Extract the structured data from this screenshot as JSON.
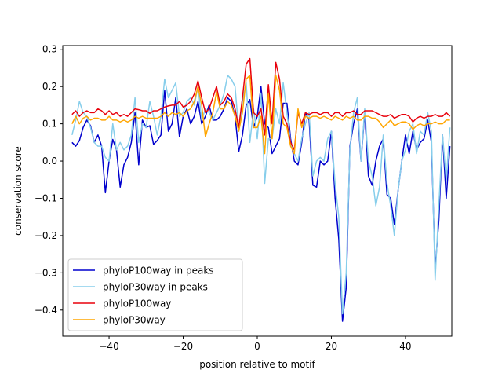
{
  "chart_data": {
    "type": "line",
    "title": "",
    "xlabel": "position relative to motif",
    "ylabel": "conservation score",
    "xlim": [
      -52.5,
      52.5
    ],
    "ylim": [
      -0.47,
      0.31
    ],
    "xticks": [
      -40,
      -20,
      0,
      20,
      40
    ],
    "yticks": [
      -0.4,
      -0.3,
      -0.2,
      -0.1,
      0.0,
      0.1,
      0.2,
      0.3
    ],
    "xtick_labels": [
      "−40",
      "−20",
      "0",
      "20",
      "40"
    ],
    "ytick_labels": [
      "−0.4",
      "−0.3",
      "−0.2",
      "−0.1",
      "0.0",
      "0.1",
      "0.2",
      "0.3"
    ],
    "grid": false,
    "legend_position": "lower-left",
    "x_start": -50,
    "series": [
      {
        "name": "phyloP100way in peaks",
        "color": "#0000cd",
        "values": [
          0.05,
          0.04,
          0.055,
          0.09,
          0.11,
          0.095,
          0.05,
          0.07,
          0.04,
          -0.085,
          0.0,
          0.058,
          0.03,
          -0.07,
          -0.01,
          0.01,
          0.05,
          0.13,
          -0.01,
          0.11,
          0.09,
          0.095,
          0.045,
          0.055,
          0.07,
          0.19,
          0.08,
          0.1,
          0.17,
          0.065,
          0.12,
          0.14,
          0.1,
          0.12,
          0.16,
          0.1,
          0.12,
          0.15,
          0.11,
          0.11,
          0.12,
          0.14,
          0.17,
          0.16,
          0.12,
          0.025,
          0.07,
          0.15,
          0.165,
          0.09,
          0.12,
          0.2,
          0.1,
          0.09,
          0.02,
          0.04,
          0.06,
          0.155,
          0.155,
          0.06,
          0.0,
          -0.01,
          0.05,
          0.13,
          0.11,
          -0.065,
          -0.07,
          0.0,
          -0.01,
          0.0,
          0.08,
          -0.1,
          -0.21,
          -0.43,
          -0.34,
          0.04,
          0.1,
          0.14,
          0.0,
          0.13,
          -0.04,
          -0.065,
          0.0,
          0.04,
          0.06,
          -0.09,
          -0.1,
          -0.17,
          -0.08,
          0.0,
          0.07,
          0.02,
          0.08,
          0.03,
          0.05,
          0.06,
          0.11,
          0.05,
          -0.29,
          -0.16,
          0.07,
          -0.1,
          0.04
        ]
      },
      {
        "name": "phyloP30way in peaks",
        "color": "#87ceeb",
        "values": [
          0.07,
          0.11,
          0.16,
          0.13,
          0.12,
          0.09,
          0.05,
          0.04,
          0.04,
          0.01,
          0.0,
          0.1,
          0.03,
          0.05,
          0.03,
          0.04,
          0.07,
          0.17,
          0.05,
          0.1,
          0.09,
          0.16,
          0.12,
          0.07,
          0.12,
          0.22,
          0.17,
          0.19,
          0.21,
          0.12,
          0.13,
          0.16,
          0.17,
          0.15,
          0.2,
          0.11,
          0.14,
          0.13,
          0.11,
          0.13,
          0.15,
          0.18,
          0.23,
          0.22,
          0.2,
          0.08,
          0.16,
          0.21,
          0.05,
          0.14,
          0.06,
          0.18,
          -0.06,
          0.06,
          0.06,
          0.14,
          0.1,
          0.21,
          0.13,
          0.05,
          0.02,
          0.0,
          0.06,
          0.1,
          0.13,
          -0.04,
          0.0,
          0.01,
          0.0,
          0.06,
          0.08,
          -0.06,
          -0.15,
          -0.41,
          -0.3,
          0.03,
          0.13,
          0.17,
          0.0,
          0.14,
          0.0,
          -0.04,
          -0.12,
          -0.07,
          0.07,
          -0.06,
          -0.12,
          -0.2,
          -0.08,
          0.0,
          0.03,
          0.08,
          0.1,
          0.02,
          0.08,
          0.07,
          0.13,
          0.08,
          -0.32,
          -0.12,
          0.07,
          -0.05,
          0.09
        ]
      },
      {
        "name": "phyloP100way",
        "color": "#e8000b",
        "values": [
          0.125,
          0.135,
          0.12,
          0.13,
          0.135,
          0.13,
          0.13,
          0.14,
          0.135,
          0.125,
          0.135,
          0.125,
          0.13,
          0.12,
          0.125,
          0.12,
          0.13,
          0.14,
          0.138,
          0.135,
          0.135,
          0.128,
          0.135,
          0.135,
          0.14,
          0.145,
          0.148,
          0.15,
          0.15,
          0.16,
          0.145,
          0.15,
          0.16,
          0.18,
          0.215,
          0.17,
          0.13,
          0.14,
          0.17,
          0.2,
          0.15,
          0.16,
          0.18,
          0.17,
          0.14,
          0.09,
          0.17,
          0.26,
          0.275,
          0.13,
          0.12,
          0.14,
          0.07,
          0.205,
          0.1,
          0.265,
          0.22,
          0.12,
          0.1,
          0.05,
          0.03,
          0.13,
          0.1,
          0.13,
          0.125,
          0.13,
          0.13,
          0.125,
          0.13,
          0.13,
          0.12,
          0.13,
          0.13,
          0.12,
          0.13,
          0.13,
          0.135,
          0.125,
          0.125,
          0.135,
          0.135,
          0.135,
          0.13,
          0.125,
          0.12,
          0.12,
          0.125,
          0.115,
          0.12,
          0.125,
          0.125,
          0.12,
          0.105,
          0.115,
          0.12,
          0.115,
          0.12,
          0.12,
          0.125,
          0.12,
          0.12,
          0.13,
          0.12
        ]
      },
      {
        "name": "phyloP30way",
        "color": "#ffa500",
        "values": [
          0.1,
          0.12,
          0.1,
          0.115,
          0.12,
          0.11,
          0.115,
          0.115,
          0.11,
          0.11,
          0.12,
          0.11,
          0.11,
          0.105,
          0.11,
          0.105,
          0.11,
          0.12,
          0.115,
          0.12,
          0.115,
          0.115,
          0.115,
          0.115,
          0.12,
          0.13,
          0.12,
          0.13,
          0.125,
          0.13,
          0.12,
          0.135,
          0.14,
          0.16,
          0.2,
          0.15,
          0.065,
          0.1,
          0.13,
          0.185,
          0.14,
          0.14,
          0.16,
          0.15,
          0.12,
          0.08,
          0.13,
          0.22,
          0.23,
          0.09,
          0.09,
          0.12,
          0.02,
          0.18,
          0.06,
          0.23,
          0.19,
          0.1,
          0.09,
          0.04,
          0.02,
          0.14,
          0.09,
          0.12,
          0.115,
          0.12,
          0.12,
          0.115,
          0.12,
          0.115,
          0.11,
          0.12,
          0.115,
          0.11,
          0.12,
          0.115,
          0.12,
          0.11,
          0.11,
          0.12,
          0.12,
          0.115,
          0.115,
          0.105,
          0.09,
          0.1,
          0.11,
          0.095,
          0.1,
          0.105,
          0.105,
          0.1,
          0.085,
          0.095,
          0.1,
          0.095,
          0.1,
          0.1,
          0.105,
          0.1,
          0.1,
          0.11,
          0.11
        ]
      }
    ]
  }
}
